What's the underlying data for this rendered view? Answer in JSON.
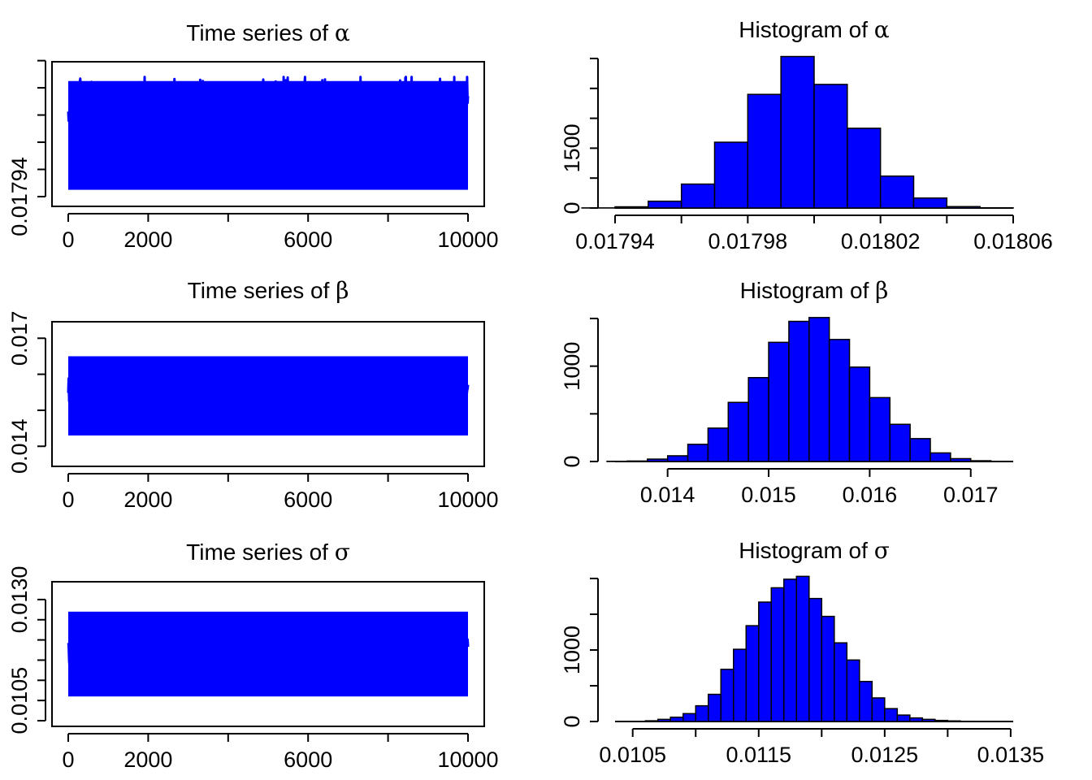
{
  "chart_data": [
    {
      "type": "line",
      "title": "Time series of α",
      "title_prefix": "Time series of ",
      "title_symbol": "α",
      "color": "#0000ff",
      "x_range": [
        0,
        10000
      ],
      "y_range": [
        0.017937,
        0.018035
      ],
      "x_ticks": [
        0,
        2000,
        4000,
        6000,
        8000,
        10000
      ],
      "x_tick_labels": [
        "0",
        "2000",
        "",
        "6000",
        "",
        "10000"
      ],
      "y_ticks": [
        0.01794,
        0.01798,
        0.01802
      ],
      "y_tick_labels": [
        "0.01794",
        "",
        ""
      ],
      "y_tick_count": 7,
      "series": {
        "center": 0.018,
        "sd": 1.8e-05,
        "band": [
          0.017945,
          0.018025
        ],
        "min": 0.017937,
        "max": 0.018028
      }
    },
    {
      "type": "bar",
      "title": "Histogram of α",
      "title_prefix": "Histogram of ",
      "title_symbol": "α",
      "color": "#0000ff",
      "bin_edges": [
        0.01792,
        0.01793,
        0.01794,
        0.01795,
        0.01796,
        0.01797,
        0.01798,
        0.01799,
        0.018,
        0.01801,
        0.01802,
        0.01803,
        0.01804,
        0.01805,
        0.01806
      ],
      "counts": [
        1,
        3,
        30,
        170,
        600,
        1650,
        2850,
        3800,
        3100,
        2000,
        800,
        250,
        35,
        5
      ],
      "x_ticks": [
        0.01794,
        0.01796,
        0.01798,
        0.018,
        0.01802,
        0.01804,
        0.01806
      ],
      "x_tick_labels": [
        "0.01794",
        "",
        "0.01798",
        "",
        "0.01802",
        "",
        "0.01806"
      ],
      "y_ticks": [
        0,
        750,
        1500,
        2250,
        3000,
        3750
      ],
      "y_tick_labels": [
        "0",
        "",
        "1500",
        "",
        "",
        ""
      ]
    },
    {
      "type": "line",
      "title": "Time series of β",
      "title_prefix": "Time series of ",
      "title_symbol": "β",
      "color": "#0000ff",
      "x_range": [
        0,
        10000
      ],
      "y_range": [
        0.0136,
        0.0173
      ],
      "x_ticks": [
        0,
        2000,
        4000,
        6000,
        8000,
        10000
      ],
      "x_tick_labels": [
        "0",
        "2000",
        "",
        "6000",
        "",
        "10000"
      ],
      "y_ticks": [
        0.014,
        0.015,
        0.016,
        0.017
      ],
      "y_tick_labels": [
        "0.014",
        "",
        "",
        "0.017"
      ],
      "series": {
        "center": 0.0154,
        "sd": 0.0004,
        "band": [
          0.0143,
          0.0165
        ],
        "min": 0.0137,
        "max": 0.0173
      }
    },
    {
      "type": "bar",
      "title": "Histogram of β",
      "title_prefix": "Histogram of ",
      "title_symbol": "β",
      "color": "#0000ff",
      "bin_edges": [
        0.0134,
        0.0136,
        0.0138,
        0.014,
        0.0142,
        0.0144,
        0.0146,
        0.0148,
        0.015,
        0.0152,
        0.0154,
        0.0156,
        0.0158,
        0.016,
        0.0162,
        0.0164,
        0.0166,
        0.0168,
        0.017,
        0.0172,
        0.0174
      ],
      "counts": [
        2,
        5,
        25,
        60,
        180,
        350,
        620,
        880,
        1250,
        1470,
        1510,
        1280,
        990,
        670,
        390,
        240,
        90,
        30,
        8,
        2
      ],
      "x_ticks": [
        0.014,
        0.015,
        0.016,
        0.017
      ],
      "x_tick_labels": [
        "0.014",
        "0.015",
        "0.016",
        "0.017"
      ],
      "y_ticks": [
        0,
        500,
        1000,
        1500
      ],
      "y_tick_labels": [
        "0",
        "",
        "1000",
        ""
      ]
    },
    {
      "type": "line",
      "title": "Time series of σ",
      "title_prefix": "Time series of ",
      "title_symbol": "σ",
      "color": "#0000ff",
      "x_range": [
        0,
        10000
      ],
      "y_range": [
        0.01,
        0.0133
      ],
      "x_ticks": [
        0,
        2000,
        4000,
        6000,
        8000,
        10000
      ],
      "x_tick_labels": [
        "0",
        "2000",
        "",
        "6000",
        "",
        "10000"
      ],
      "y_ticks": [
        0.01,
        0.0105,
        0.011,
        0.0115,
        0.012,
        0.0125,
        0.013
      ],
      "y_tick_labels": [
        "0.0105",
        "",
        "",
        "",
        "",
        "0.0130"
      ],
      "y_tick_values_labeled": [
        0.0105,
        0.013
      ],
      "series": {
        "center": 0.01185,
        "sd": 0.0003,
        "band": [
          0.0106,
          0.0127
        ],
        "min": 0.01,
        "max": 0.0132
      }
    },
    {
      "type": "bar",
      "title": "Histogram of σ",
      "title_prefix": "Histogram of ",
      "title_symbol": "σ",
      "color": "#0000ff",
      "bin_edges": [
        0.0104,
        0.0105,
        0.0106,
        0.0107,
        0.0108,
        0.0109,
        0.011,
        0.0111,
        0.0112,
        0.0113,
        0.0114,
        0.0115,
        0.0116,
        0.0117,
        0.0118,
        0.0119,
        0.012,
        0.0121,
        0.0122,
        0.0123,
        0.0124,
        0.0125,
        0.0126,
        0.0127,
        0.0128,
        0.0129,
        0.013,
        0.0131,
        0.0132,
        0.0133,
        0.0134
      ],
      "counts": [
        1,
        2,
        5,
        10,
        30,
        60,
        110,
        200,
        380,
        600,
        900,
        1250,
        1600,
        1850,
        2000,
        2000,
        1880,
        1650,
        1350,
        1050,
        750,
        470,
        270,
        150,
        80,
        40,
        18,
        7,
        3,
        1
      ],
      "bins_display": {
        "edges": [
          0.0106,
          0.0107,
          0.0108,
          0.0109,
          0.011,
          0.0111,
          0.0112,
          0.0113,
          0.0114,
          0.0115,
          0.0116,
          0.0117,
          0.0118,
          0.0119,
          0.012,
          0.0121,
          0.0122,
          0.0123,
          0.0124,
          0.0125,
          0.0126,
          0.0127,
          0.0128,
          0.0129,
          0.013,
          0.0131,
          0.0132,
          0.0133
        ],
        "counts": [
          10,
          30,
          60,
          110,
          220,
          380,
          730,
          1010,
          1340,
          1670,
          1870,
          1990,
          2030,
          1720,
          1470,
          1100,
          860,
          560,
          330,
          180,
          90,
          50,
          30,
          15,
          8,
          3,
          1
        ]
      },
      "x_ticks": [
        0.0105,
        0.011,
        0.0115,
        0.012,
        0.0125,
        0.013,
        0.0135
      ],
      "x_tick_labels": [
        "0.0105",
        "",
        "0.0115",
        "",
        "0.0125",
        "",
        "0.0135"
      ],
      "y_ticks": [
        0,
        500,
        1000,
        1500,
        2000
      ],
      "y_tick_labels": [
        "0",
        "",
        "1000",
        "",
        ""
      ]
    }
  ]
}
